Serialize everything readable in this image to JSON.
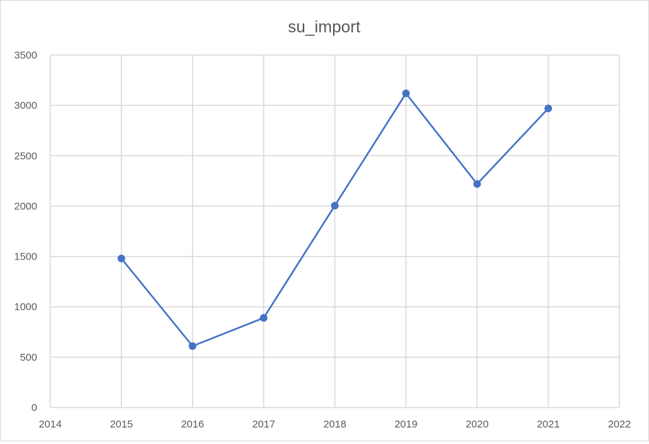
{
  "chart_data": {
    "type": "line",
    "title": "su_import",
    "xlabel": "",
    "ylabel": "",
    "xlim": [
      2014,
      2022
    ],
    "ylim": [
      0,
      3500
    ],
    "x_ticks": [
      2014,
      2015,
      2016,
      2017,
      2018,
      2019,
      2020,
      2021,
      2022
    ],
    "y_ticks": [
      0,
      500,
      1000,
      1500,
      2000,
      2500,
      3000,
      3500
    ],
    "grid": true,
    "legend": "none",
    "markers": true,
    "series": [
      {
        "color": "#4472c4",
        "x": [
          2015,
          2016,
          2017,
          2018,
          2019,
          2020,
          2021
        ],
        "values": [
          1480,
          610,
          890,
          2005,
          3120,
          2220,
          2970
        ]
      }
    ]
  }
}
